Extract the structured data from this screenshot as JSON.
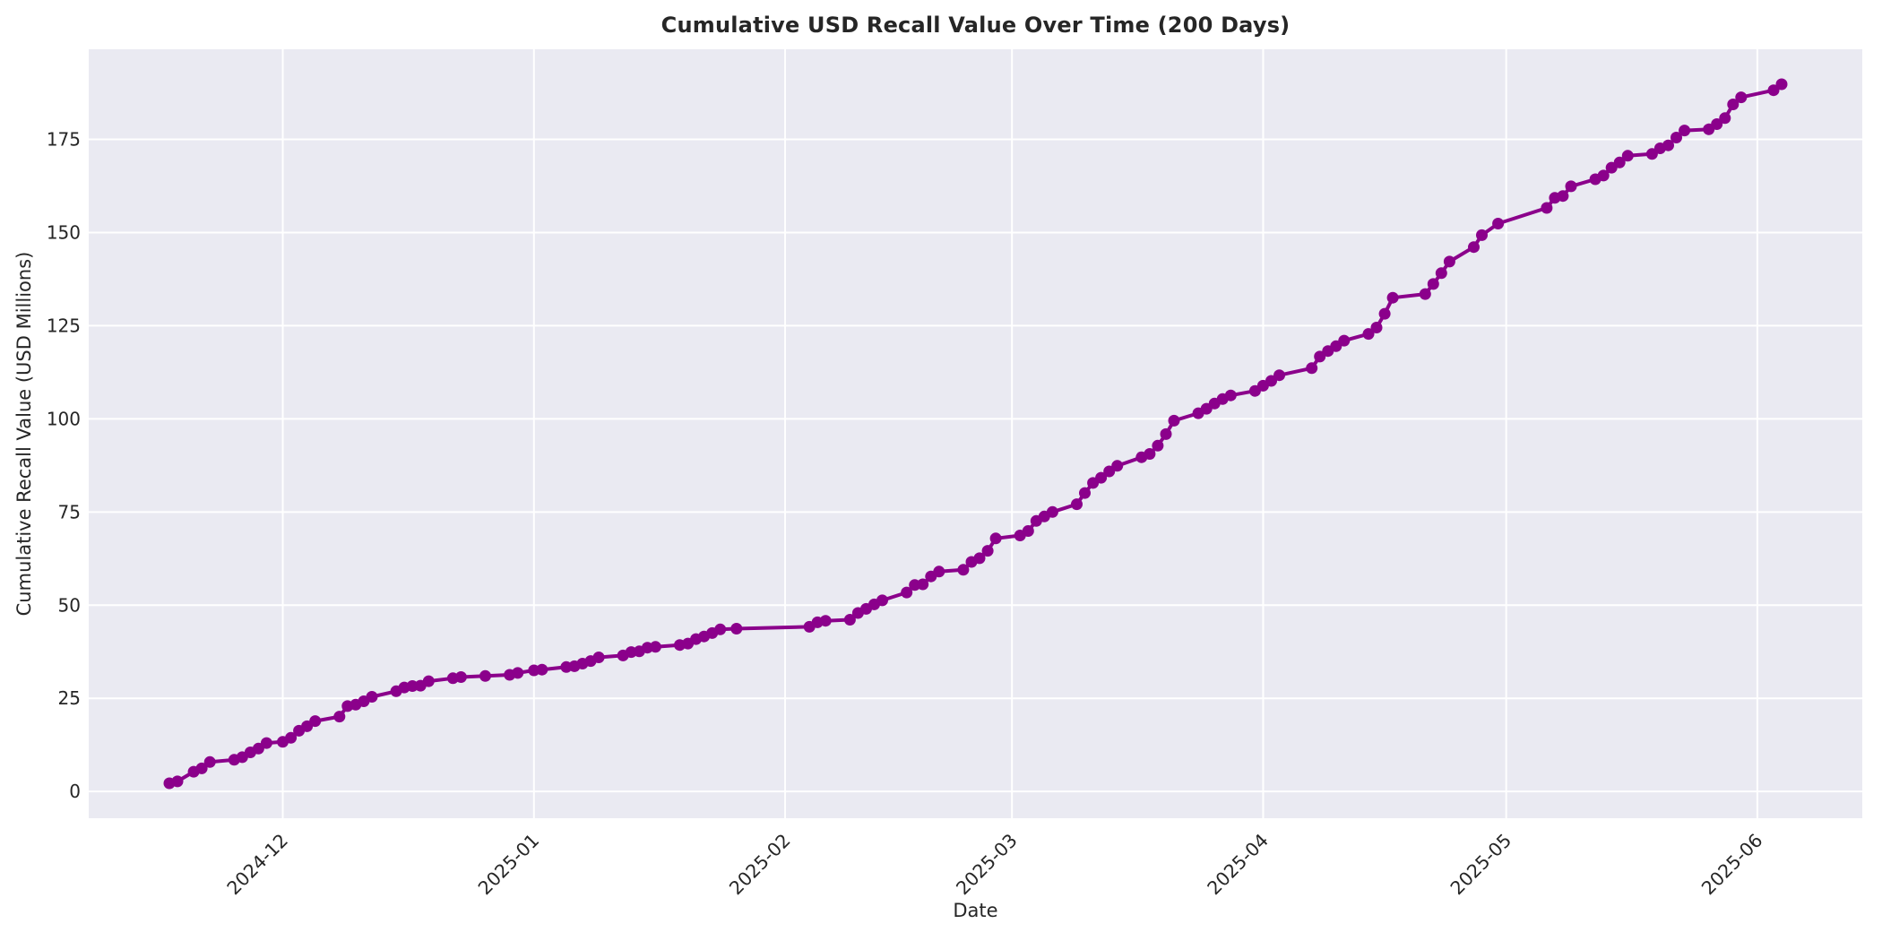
{
  "figure": {
    "kind": "matplotlib-seaborn line chart"
  },
  "chart_data": {
    "type": "line",
    "title": "Cumulative USD Recall Value Over Time (200 Days)",
    "xlabel": "Date",
    "ylabel": "Cumulative Recall Value (USD Millions)",
    "legend": null,
    "grid": true,
    "plot_bg_color": "#EAEAF2",
    "grid_color": "#FFFFFF",
    "line_color": "#8B008B",
    "marker": "o",
    "text_color": "#262626",
    "yticks": [
      0,
      25,
      50,
      75,
      100,
      125,
      150,
      175
    ],
    "ylim": [
      -7.2,
      199.2
    ],
    "xticks": [
      {
        "label": "2024-12",
        "date": "2024-12-01"
      },
      {
        "label": "2025-01",
        "date": "2025-01-01"
      },
      {
        "label": "2025-02",
        "date": "2025-02-01"
      },
      {
        "label": "2025-03",
        "date": "2025-03-01"
      },
      {
        "label": "2025-04",
        "date": "2025-04-01"
      },
      {
        "label": "2025-05",
        "date": "2025-05-01"
      },
      {
        "label": "2025-06",
        "date": "2025-06-01"
      },
      {
        "label": "",
        "date": ""
      }
    ],
    "x_span_days": 200,
    "x_margin_frac": 0.05,
    "y_margin_frac": 0.05,
    "series": [
      {
        "name": "Cumulative Recall Value",
        "points": [
          [
            "2024-11-17",
            2.2
          ],
          [
            "2024-11-18",
            2.7
          ],
          [
            "2024-11-20",
            5.3
          ],
          [
            "2024-11-21",
            6.2
          ],
          [
            "2024-11-22",
            7.9
          ],
          [
            "2024-11-25",
            8.5
          ],
          [
            "2024-11-26",
            9.2
          ],
          [
            "2024-11-27",
            10.5
          ],
          [
            "2024-11-28",
            11.5
          ],
          [
            "2024-11-29",
            13.0
          ],
          [
            "2024-12-01",
            13.3
          ],
          [
            "2024-12-02",
            14.4
          ],
          [
            "2024-12-03",
            16.3
          ],
          [
            "2024-12-04",
            17.5
          ],
          [
            "2024-12-05",
            18.9
          ],
          [
            "2024-12-08",
            20.1
          ],
          [
            "2024-12-09",
            22.9
          ],
          [
            "2024-12-10",
            23.3
          ],
          [
            "2024-12-11",
            24.2
          ],
          [
            "2024-12-12",
            25.4
          ],
          [
            "2024-12-15",
            26.9
          ],
          [
            "2024-12-16",
            27.9
          ],
          [
            "2024-12-17",
            28.3
          ],
          [
            "2024-12-18",
            28.4
          ],
          [
            "2024-12-19",
            29.6
          ],
          [
            "2024-12-22",
            30.4
          ],
          [
            "2024-12-23",
            30.7
          ],
          [
            "2024-12-26",
            31.0
          ],
          [
            "2024-12-29",
            31.3
          ],
          [
            "2024-12-30",
            31.8
          ],
          [
            "2025-01-01",
            32.5
          ],
          [
            "2025-01-02",
            32.7
          ],
          [
            "2025-01-05",
            33.4
          ],
          [
            "2025-01-06",
            33.6
          ],
          [
            "2025-01-07",
            34.3
          ],
          [
            "2025-01-08",
            35.0
          ],
          [
            "2025-01-09",
            36.0
          ],
          [
            "2025-01-12",
            36.5
          ],
          [
            "2025-01-13",
            37.4
          ],
          [
            "2025-01-14",
            37.6
          ],
          [
            "2025-01-15",
            38.6
          ],
          [
            "2025-01-16",
            38.8
          ],
          [
            "2025-01-19",
            39.3
          ],
          [
            "2025-01-20",
            39.7
          ],
          [
            "2025-01-21",
            40.9
          ],
          [
            "2025-01-22",
            41.6
          ],
          [
            "2025-01-23",
            42.5
          ],
          [
            "2025-01-24",
            43.5
          ],
          [
            "2025-01-26",
            43.7
          ],
          [
            "2025-02-04",
            44.2
          ],
          [
            "2025-02-05",
            45.4
          ],
          [
            "2025-02-06",
            45.8
          ],
          [
            "2025-02-09",
            46.1
          ],
          [
            "2025-02-10",
            47.9
          ],
          [
            "2025-02-11",
            49.0
          ],
          [
            "2025-02-12",
            50.2
          ],
          [
            "2025-02-13",
            51.3
          ],
          [
            "2025-02-16",
            53.4
          ],
          [
            "2025-02-17",
            55.4
          ],
          [
            "2025-02-18",
            55.6
          ],
          [
            "2025-02-19",
            57.7
          ],
          [
            "2025-02-20",
            59.0
          ],
          [
            "2025-02-23",
            59.5
          ],
          [
            "2025-02-24",
            61.6
          ],
          [
            "2025-02-25",
            62.6
          ],
          [
            "2025-02-26",
            64.6
          ],
          [
            "2025-02-27",
            67.9
          ],
          [
            "2025-03-02",
            68.7
          ],
          [
            "2025-03-03",
            69.9
          ],
          [
            "2025-03-04",
            72.6
          ],
          [
            "2025-03-05",
            73.8
          ],
          [
            "2025-03-06",
            75.0
          ],
          [
            "2025-03-09",
            77.1
          ],
          [
            "2025-03-10",
            80.1
          ],
          [
            "2025-03-11",
            82.8
          ],
          [
            "2025-03-12",
            84.2
          ],
          [
            "2025-03-13",
            85.9
          ],
          [
            "2025-03-14",
            87.4
          ],
          [
            "2025-03-17",
            89.7
          ],
          [
            "2025-03-18",
            90.6
          ],
          [
            "2025-03-19",
            92.8
          ],
          [
            "2025-03-20",
            95.9
          ],
          [
            "2025-03-21",
            99.5
          ],
          [
            "2025-03-24",
            101.5
          ],
          [
            "2025-03-25",
            102.7
          ],
          [
            "2025-03-26",
            104.1
          ],
          [
            "2025-03-27",
            105.3
          ],
          [
            "2025-03-28",
            106.3
          ],
          [
            "2025-03-31",
            107.5
          ],
          [
            "2025-04-01",
            108.9
          ],
          [
            "2025-04-02",
            110.2
          ],
          [
            "2025-04-03",
            111.7
          ],
          [
            "2025-04-07",
            113.6
          ],
          [
            "2025-04-08",
            116.7
          ],
          [
            "2025-04-09",
            118.2
          ],
          [
            "2025-04-10",
            119.5
          ],
          [
            "2025-04-11",
            121.0
          ],
          [
            "2025-04-14",
            122.8
          ],
          [
            "2025-04-15",
            124.5
          ],
          [
            "2025-04-16",
            128.2
          ],
          [
            "2025-04-17",
            132.5
          ],
          [
            "2025-04-21",
            133.5
          ],
          [
            "2025-04-22",
            136.2
          ],
          [
            "2025-04-23",
            139.1
          ],
          [
            "2025-04-24",
            142.2
          ],
          [
            "2025-04-27",
            146.1
          ],
          [
            "2025-04-28",
            149.3
          ],
          [
            "2025-04-30",
            152.4
          ],
          [
            "2025-05-06",
            156.6
          ],
          [
            "2025-05-07",
            159.3
          ],
          [
            "2025-05-08",
            159.8
          ],
          [
            "2025-05-09",
            162.4
          ],
          [
            "2025-05-12",
            164.3
          ],
          [
            "2025-05-13",
            165.3
          ],
          [
            "2025-05-14",
            167.4
          ],
          [
            "2025-05-15",
            168.8
          ],
          [
            "2025-05-16",
            170.6
          ],
          [
            "2025-05-19",
            171.1
          ],
          [
            "2025-05-20",
            172.6
          ],
          [
            "2025-05-21",
            173.4
          ],
          [
            "2025-05-22",
            175.5
          ],
          [
            "2025-05-23",
            177.4
          ],
          [
            "2025-05-26",
            177.7
          ],
          [
            "2025-05-27",
            179.1
          ],
          [
            "2025-05-28",
            180.7
          ],
          [
            "2025-05-29",
            184.4
          ],
          [
            "2025-05-30",
            186.3
          ],
          [
            "2025-06-03",
            188.2
          ],
          [
            "2025-06-04",
            189.8
          ]
        ]
      }
    ]
  }
}
